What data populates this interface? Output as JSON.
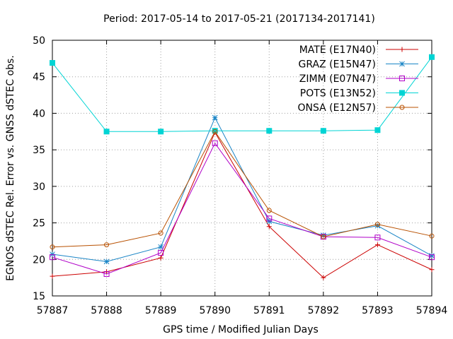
{
  "chart_data": {
    "type": "line",
    "title": "Period: 2017-05-14 to 2017-05-21 (2017134-2017141)",
    "xlabel": "GPS time / Modified Julian Days",
    "ylabel": "EGNOS dSTEC Rel. Error vs. GNSS dSTEC obs.",
    "xlim": [
      57887,
      57894
    ],
    "ylim": [
      15,
      50
    ],
    "xticks": [
      57887,
      57888,
      57889,
      57890,
      57891,
      57892,
      57893,
      57894
    ],
    "yticks": [
      15,
      20,
      25,
      30,
      35,
      40,
      45,
      50
    ],
    "grid": true,
    "legend_position": "top-right",
    "x": [
      57887,
      57888,
      57889,
      57890,
      57891,
      57892,
      57893,
      57894
    ],
    "series": [
      {
        "name": "MATE (E17N40)",
        "color": "#cc0000",
        "marker": "plus",
        "values": [
          17.7,
          18.3,
          20.2,
          37.4,
          24.5,
          17.5,
          22.0,
          18.6
        ]
      },
      {
        "name": "GRAZ (E15N47)",
        "color": "#1a85c6",
        "marker": "star",
        "values": [
          20.7,
          19.7,
          21.7,
          39.4,
          25.2,
          23.3,
          24.6,
          20.5
        ]
      },
      {
        "name": "ZIMM (E07N47)",
        "color": "#b000c8",
        "marker": "open-square",
        "values": [
          20.3,
          18.0,
          20.9,
          35.9,
          25.6,
          23.1,
          23.0,
          20.3
        ]
      },
      {
        "name": "POTS (E13N52)",
        "color": "#00d4d4",
        "marker": "filled-square",
        "values": [
          46.9,
          37.5,
          37.5,
          37.6,
          37.6,
          37.6,
          37.7,
          47.7
        ]
      },
      {
        "name": "ONSA (E12N57)",
        "color": "#b85000",
        "marker": "open-circle",
        "values": [
          21.7,
          22.0,
          23.6,
          37.5,
          26.7,
          23.1,
          24.8,
          23.2
        ]
      }
    ]
  }
}
